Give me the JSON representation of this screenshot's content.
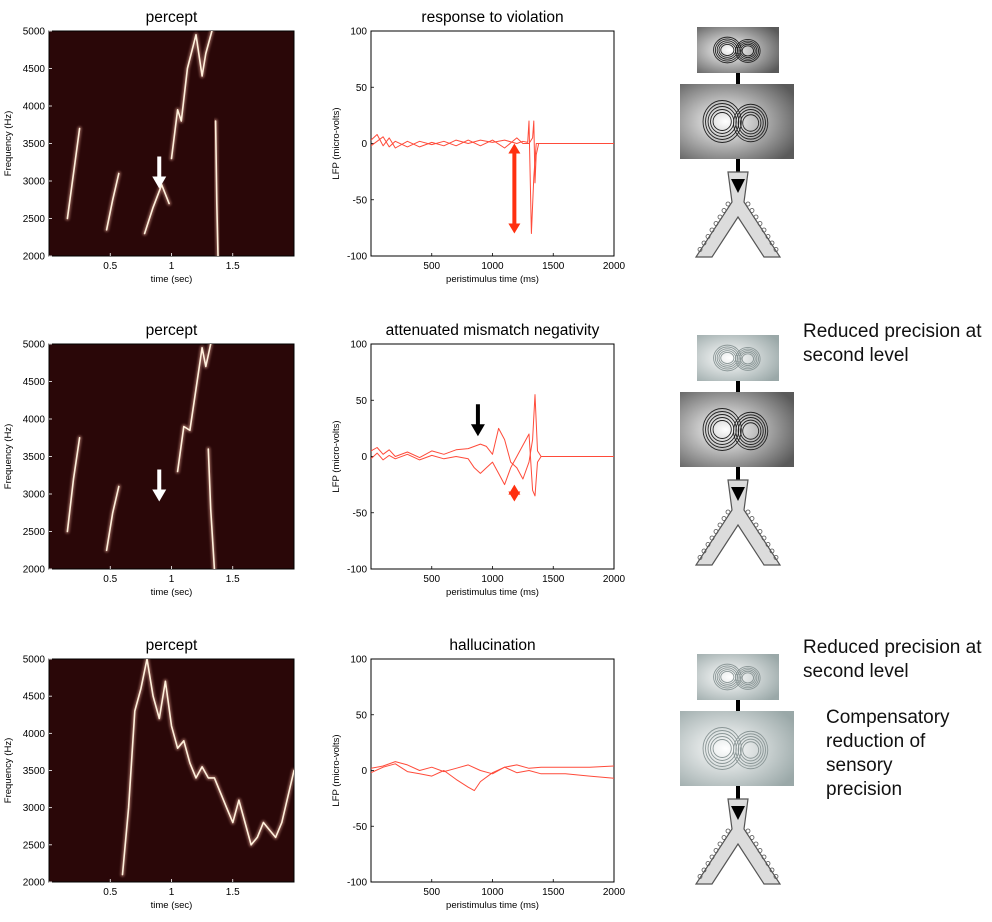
{
  "annotations": {
    "row2_note": [
      "Reduced precision at",
      "second level"
    ],
    "row3_note": [
      "Reduced precision at",
      "second level"
    ],
    "row3_comp": [
      "Compensatory",
      "reduction of sensory",
      "precision"
    ]
  },
  "colors": {
    "spectrogram_bg": "#2a0708",
    "lfp_line": "#ff4b3a",
    "red_arrow": "#ff3010",
    "white_arrow": "#ffffff",
    "black_arrow": "#000000"
  },
  "icons": [
    "arrow-down-icon",
    "double-arrow-icon",
    "attractor-icon",
    "hierarchy-diagram-icon"
  ],
  "chart_data": [
    {
      "type": "line",
      "subtype": "spectrogram",
      "title": "percept",
      "xlabel": "time (sec)",
      "ylabel": "Frequency (Hz)",
      "xlim": [
        0,
        2
      ],
      "ylim": [
        2000,
        5000
      ],
      "xticks": [
        "0.5",
        "1",
        "1.5"
      ],
      "yticks": [
        "2000",
        "2500",
        "3000",
        "3500",
        "4000",
        "4500",
        "5000"
      ],
      "series": [
        {
          "x": [
            0.15,
            0.2,
            0.25
          ],
          "y": [
            2500,
            3100,
            3700
          ]
        },
        {
          "x": [
            0.47,
            0.52,
            0.57
          ],
          "y": [
            2350,
            2750,
            3100
          ]
        },
        {
          "x": [
            0.78,
            0.85,
            0.92,
            0.98
          ],
          "y": [
            2300,
            2650,
            2950,
            2700
          ]
        },
        {
          "x": [
            1.0,
            1.05,
            1.08,
            1.13,
            1.2,
            1.25,
            1.28,
            1.33
          ],
          "y": [
            3300,
            3950,
            3800,
            4500,
            4950,
            4400,
            4700,
            5000
          ]
        },
        {
          "x": [
            1.36,
            1.37,
            1.38
          ],
          "y": [
            3800,
            2700,
            2000
          ]
        }
      ],
      "arrows": [
        {
          "kind": "white",
          "x": 0.9,
          "y": 2900
        }
      ]
    },
    {
      "type": "line",
      "title": "response to violation",
      "xlabel": "peristimulus time (ms)",
      "ylabel": "LFP (micro-volts)",
      "xlim": [
        0,
        2000
      ],
      "ylim": [
        -100,
        100
      ],
      "xticks": [
        "500",
        "1000",
        "1500",
        "2000"
      ],
      "yticks": [
        "-100",
        "-50",
        "0",
        "50",
        "100"
      ],
      "series": [
        {
          "x": [
            0,
            50,
            100,
            150,
            200,
            300,
            400,
            500,
            600,
            700,
            800,
            900,
            1000,
            1100,
            1200,
            1250,
            1290,
            1300,
            1320,
            1340,
            1360,
            1370,
            1400,
            2000
          ],
          "y": [
            3,
            8,
            -2,
            5,
            -4,
            2,
            -3,
            1,
            -2,
            3,
            0,
            3,
            1,
            3,
            0,
            2,
            1,
            20,
            -80,
            -30,
            0,
            0,
            0,
            0
          ]
        },
        {
          "x": [
            0,
            50,
            100,
            150,
            200,
            300,
            400,
            500,
            600,
            700,
            800,
            900,
            1000,
            1100,
            1200,
            1250,
            1300,
            1330,
            1340,
            1350,
            1360,
            1380,
            1400,
            2000
          ],
          "y": [
            -2,
            2,
            6,
            -3,
            2,
            -3,
            2,
            -1,
            2,
            -2,
            3,
            -2,
            3,
            -4,
            5,
            0,
            0,
            5,
            20,
            -35,
            -10,
            0,
            0,
            0
          ]
        }
      ],
      "arrows": [
        {
          "kind": "red-double",
          "x": 1180,
          "y_from": 0,
          "y_to": -80
        }
      ]
    },
    {
      "type": "line",
      "subtype": "spectrogram",
      "title": "percept",
      "xlabel": "time (sec)",
      "ylabel": "Frequency (Hz)",
      "xlim": [
        0,
        2
      ],
      "ylim": [
        2000,
        5000
      ],
      "xticks": [
        "0.5",
        "1",
        "1.5"
      ],
      "yticks": [
        "2000",
        "2500",
        "3000",
        "3500",
        "4000",
        "4500",
        "5000"
      ],
      "series": [
        {
          "x": [
            0.15,
            0.2,
            0.25
          ],
          "y": [
            2500,
            3200,
            3750
          ]
        },
        {
          "x": [
            0.47,
            0.52,
            0.57
          ],
          "y": [
            2250,
            2750,
            3100
          ]
        },
        {
          "x": [
            1.05,
            1.1,
            1.15,
            1.2,
            1.25,
            1.28,
            1.32
          ],
          "y": [
            3300,
            3900,
            3850,
            4400,
            4950,
            4700,
            5000
          ]
        },
        {
          "x": [
            1.3,
            1.32,
            1.35
          ],
          "y": [
            3600,
            2800,
            2000
          ]
        }
      ],
      "arrows": [
        {
          "kind": "white",
          "x": 0.9,
          "y": 2900
        }
      ]
    },
    {
      "type": "line",
      "title": "attenuated mismatch negativity",
      "xlabel": "peristimulus time (ms)",
      "ylabel": "LFP (micro-volts)",
      "xlim": [
        0,
        2000
      ],
      "ylim": [
        -100,
        100
      ],
      "xticks": [
        "500",
        "1000",
        "1500",
        "2000"
      ],
      "yticks": [
        "-100",
        "-50",
        "0",
        "50",
        "100"
      ],
      "series": [
        {
          "x": [
            0,
            50,
            100,
            150,
            200,
            300,
            400,
            500,
            600,
            700,
            800,
            850,
            900,
            950,
            1000,
            1050,
            1100,
            1150,
            1200,
            1250,
            1300,
            1330,
            1350,
            1370,
            1400,
            1500,
            2000
          ],
          "y": [
            5,
            8,
            2,
            6,
            0,
            4,
            -1,
            5,
            2,
            6,
            7,
            9,
            11,
            9,
            2,
            25,
            15,
            -5,
            -10,
            -20,
            -5,
            15,
            55,
            5,
            0,
            0,
            0
          ]
        },
        {
          "x": [
            0,
            50,
            100,
            150,
            200,
            300,
            400,
            500,
            600,
            700,
            800,
            850,
            900,
            950,
            1000,
            1050,
            1100,
            1150,
            1200,
            1250,
            1300,
            1330,
            1350,
            1370,
            1400,
            1500,
            2000
          ],
          "y": [
            -2,
            3,
            -3,
            1,
            -2,
            2,
            -3,
            1,
            -2,
            0,
            -2,
            -10,
            -15,
            -10,
            -5,
            -15,
            -25,
            -10,
            0,
            10,
            20,
            -30,
            -35,
            -5,
            0,
            0,
            0
          ]
        }
      ],
      "arrows": [
        {
          "kind": "black",
          "x": 880,
          "y": 18
        },
        {
          "kind": "red-double",
          "x": 1180,
          "y_from": -25,
          "y_to": -40
        }
      ]
    },
    {
      "type": "line",
      "subtype": "spectrogram",
      "title": "percept",
      "xlabel": "time (sec)",
      "ylabel": "Frequency (Hz)",
      "xlim": [
        0,
        2
      ],
      "ylim": [
        2000,
        5000
      ],
      "xticks": [
        "0.5",
        "1",
        "1.5"
      ],
      "yticks": [
        "2000",
        "2500",
        "3000",
        "3500",
        "4000",
        "4500",
        "5000"
      ],
      "series": [
        {
          "x": [
            0.6,
            0.65,
            0.7,
            0.75,
            0.8,
            0.85,
            0.9,
            0.95,
            1.0,
            1.05,
            1.1,
            1.15,
            1.2,
            1.25,
            1.3,
            1.35,
            1.4,
            1.45,
            1.5,
            1.55,
            1.6,
            1.65,
            1.7,
            1.75,
            1.8,
            1.85,
            1.9,
            2.0
          ],
          "y": [
            2100,
            3000,
            4300,
            4600,
            5000,
            4500,
            4200,
            4700,
            4100,
            3800,
            3900,
            3600,
            3400,
            3550,
            3400,
            3400,
            3200,
            3000,
            2800,
            3100,
            2800,
            2500,
            2600,
            2800,
            2700,
            2600,
            2800,
            3500
          ]
        }
      ],
      "arrows": []
    },
    {
      "type": "line",
      "title": "hallucination",
      "xlabel": "peristimulus time (ms)",
      "ylabel": "LFP (micro-volts)",
      "xlim": [
        0,
        2000
      ],
      "ylim": [
        -100,
        100
      ],
      "xticks": [
        "500",
        "1000",
        "1500",
        "2000"
      ],
      "yticks": [
        "-100",
        "-50",
        "0",
        "50",
        "100"
      ],
      "series": [
        {
          "x": [
            0,
            100,
            200,
            300,
            400,
            500,
            600,
            700,
            800,
            900,
            1000,
            1100,
            1200,
            1300,
            1400,
            1600,
            1800,
            2000
          ],
          "y": [
            2,
            4,
            8,
            5,
            0,
            3,
            -1,
            2,
            5,
            0,
            -3,
            3,
            5,
            2,
            3,
            3,
            3,
            4
          ]
        },
        {
          "x": [
            0,
            100,
            200,
            300,
            400,
            500,
            600,
            700,
            800,
            850,
            900,
            1000,
            1100,
            1200,
            1300,
            1400,
            1600,
            1800,
            2000
          ],
          "y": [
            -2,
            3,
            6,
            -1,
            -3,
            -5,
            0,
            -8,
            -15,
            -18,
            -10,
            -2,
            3,
            -2,
            0,
            -3,
            -3,
            -5,
            -7
          ]
        }
      ],
      "arrows": []
    }
  ]
}
